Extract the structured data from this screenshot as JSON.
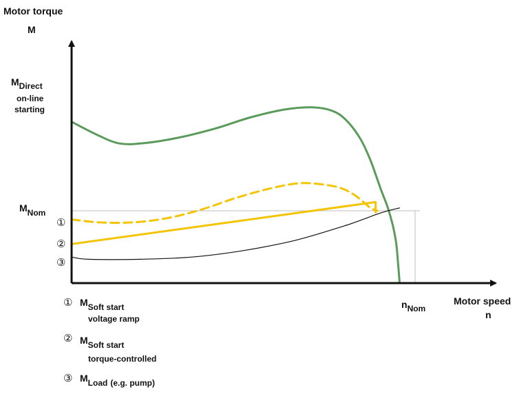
{
  "chart_data": {
    "type": "line",
    "y_axis_title": "Motor torque",
    "y_axis_symbol": "M",
    "x_axis_title": "Motor speed",
    "x_axis_symbol": "n",
    "x_tick": {
      "main": "n",
      "sub": "Nom"
    },
    "y_ticks": [
      {
        "main": "M",
        "sub": "Direct",
        "lines": [
          "on-line",
          "starting"
        ]
      },
      {
        "main": "M",
        "sub": "Nom",
        "lines": []
      }
    ],
    "curve_markers": [
      "①",
      "②",
      "③"
    ],
    "legend": [
      {
        "marker": "①",
        "main": "M",
        "sub": "Soft start",
        "detail": "voltage ramp"
      },
      {
        "marker": "②",
        "main": "M",
        "sub": "Soft start",
        "detail": "torque-controlled"
      },
      {
        "marker": "③",
        "main": "M",
        "sub": "Load",
        "detail": "(e.g. pump)"
      }
    ],
    "x_range": [
      0,
      1.0
    ],
    "y_range": [
      0,
      2.45
    ],
    "nominal": {
      "n": 1.0,
      "M": 1.0
    },
    "series": [
      {
        "key": "direct",
        "color": "#5a9a5a",
        "style": "solid",
        "points": [
          [
            0,
            2.23
          ],
          [
            0.07,
            2.06
          ],
          [
            0.14,
            1.93
          ],
          [
            0.22,
            1.94
          ],
          [
            0.32,
            2.02
          ],
          [
            0.42,
            2.14
          ],
          [
            0.52,
            2.29
          ],
          [
            0.62,
            2.4
          ],
          [
            0.7,
            2.43
          ],
          [
            0.76,
            2.38
          ],
          [
            0.8,
            2.25
          ],
          [
            0.84,
            2.0
          ],
          [
            0.87,
            1.7
          ],
          [
            0.9,
            1.3
          ],
          [
            0.92,
            1.05
          ],
          [
            0.935,
            0.8
          ],
          [
            0.945,
            0.55
          ],
          [
            0.95,
            0.3
          ],
          [
            0.955,
            0.0
          ]
        ]
      },
      {
        "key": "voltage_ramp",
        "color": "#f5c400",
        "style": "dashed",
        "points": [
          [
            0,
            0.88
          ],
          [
            0.08,
            0.84
          ],
          [
            0.18,
            0.84
          ],
          [
            0.28,
            0.9
          ],
          [
            0.38,
            1.02
          ],
          [
            0.48,
            1.18
          ],
          [
            0.58,
            1.31
          ],
          [
            0.66,
            1.38
          ],
          [
            0.72,
            1.37
          ],
          [
            0.78,
            1.32
          ],
          [
            0.82,
            1.23
          ],
          [
            0.85,
            1.12
          ],
          [
            0.87,
            1.04
          ],
          [
            0.89,
            1.0
          ]
        ]
      },
      {
        "key": "torque_controlled",
        "color": "#f5c400",
        "style": "solid",
        "points": [
          [
            0,
            0.54
          ],
          [
            0.885,
            1.12
          ],
          [
            0.885,
            0.98
          ]
        ]
      },
      {
        "key": "load",
        "color": "#111111",
        "style": "solid",
        "points": [
          [
            0,
            0.36
          ],
          [
            0.05,
            0.33
          ],
          [
            0.2,
            0.33
          ],
          [
            0.35,
            0.36
          ],
          [
            0.5,
            0.45
          ],
          [
            0.65,
            0.59
          ],
          [
            0.8,
            0.8
          ],
          [
            0.9,
            0.97
          ],
          [
            0.955,
            1.04
          ]
        ]
      }
    ]
  }
}
